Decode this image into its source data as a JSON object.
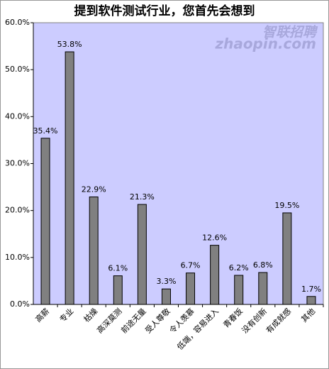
{
  "chart_data": {
    "type": "bar",
    "title": "提到软件测试行业，您首先会想到",
    "watermark": [
      "智联招聘",
      "zhaopin.com"
    ],
    "categories": [
      "高薪",
      "专业",
      "枯燥",
      "高深莫测",
      "前途无量",
      "受人尊敬",
      "令人羡慕",
      "低端，容易进入",
      "青春饭",
      "没有创新",
      "有成就感",
      "其他"
    ],
    "values": [
      35.4,
      53.8,
      22.9,
      6.1,
      21.3,
      3.3,
      6.7,
      12.6,
      6.2,
      6.8,
      19.5,
      1.7
    ],
    "value_labels": [
      "35.4%",
      "53.8%",
      "22.9%",
      "6.1%",
      "21.3%",
      "3.3%",
      "6.7%",
      "12.6%",
      "6.2%",
      "6.8%",
      "19.5%",
      "1.7%"
    ],
    "color": "#808080",
    "background": "#ccccff",
    "ylim": [
      0,
      60
    ],
    "yticks": [
      {
        "value": 0,
        "label": "0.0%"
      },
      {
        "value": 10,
        "label": "10.0%"
      },
      {
        "value": 20,
        "label": "20.0%"
      },
      {
        "value": 30,
        "label": "30.0%"
      },
      {
        "value": 40,
        "label": "40.0%"
      },
      {
        "value": 50,
        "label": "50.0%"
      },
      {
        "value": 60,
        "label": "60.0%"
      }
    ]
  }
}
